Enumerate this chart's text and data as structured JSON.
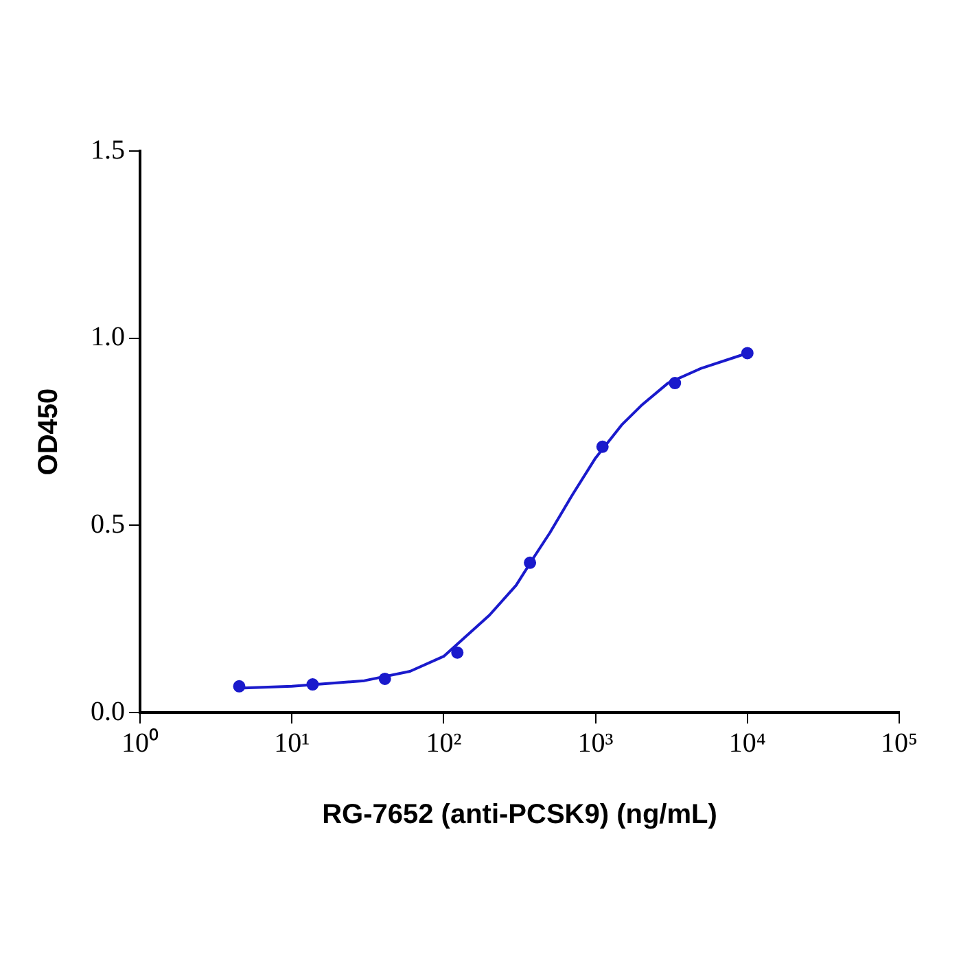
{
  "chart_data": {
    "type": "scatter",
    "xlabel": "RG-7652 (anti-PCSK9) (ng/mL)",
    "ylabel": "OD450",
    "log": "x",
    "grid": false,
    "legend": false,
    "marker": "circle",
    "xlim": [
      1,
      100000
    ],
    "xticks": [
      {
        "value": 1,
        "label": "10⁰"
      },
      {
        "value": 10,
        "label": "10¹"
      },
      {
        "value": 100,
        "label": "10²"
      },
      {
        "value": 1000,
        "label": "10³"
      },
      {
        "value": 10000,
        "label": "10⁴"
      },
      {
        "value": 100000,
        "label": "10⁵"
      }
    ],
    "ylim": [
      0,
      1.5
    ],
    "yticks": [
      {
        "value": 0,
        "label": "0.0"
      },
      {
        "value": 0.5,
        "label": "0.5"
      },
      {
        "value": 1,
        "label": "1.0"
      },
      {
        "value": 1.5,
        "label": "1.5"
      }
    ],
    "series": [
      {
        "color": "#1a1acc",
        "x": [
          4.5,
          13.7,
          41,
          123,
          370,
          1111,
          3333,
          10000
        ],
        "values": [
          0.07,
          0.075,
          0.09,
          0.16,
          0.4,
          0.71,
          0.88,
          0.96
        ]
      },
      {
        "type": "line",
        "color": "#1a1acc",
        "marker": "none",
        "x": [
          4.5,
          10,
          30,
          60,
          100,
          200,
          300,
          400,
          500,
          700,
          1000,
          1500,
          2000,
          3000,
          5000,
          10000
        ],
        "values": [
          0.065,
          0.07,
          0.085,
          0.11,
          0.15,
          0.26,
          0.34,
          0.42,
          0.48,
          0.58,
          0.68,
          0.77,
          0.82,
          0.88,
          0.92,
          0.96
        ]
      }
    ]
  }
}
